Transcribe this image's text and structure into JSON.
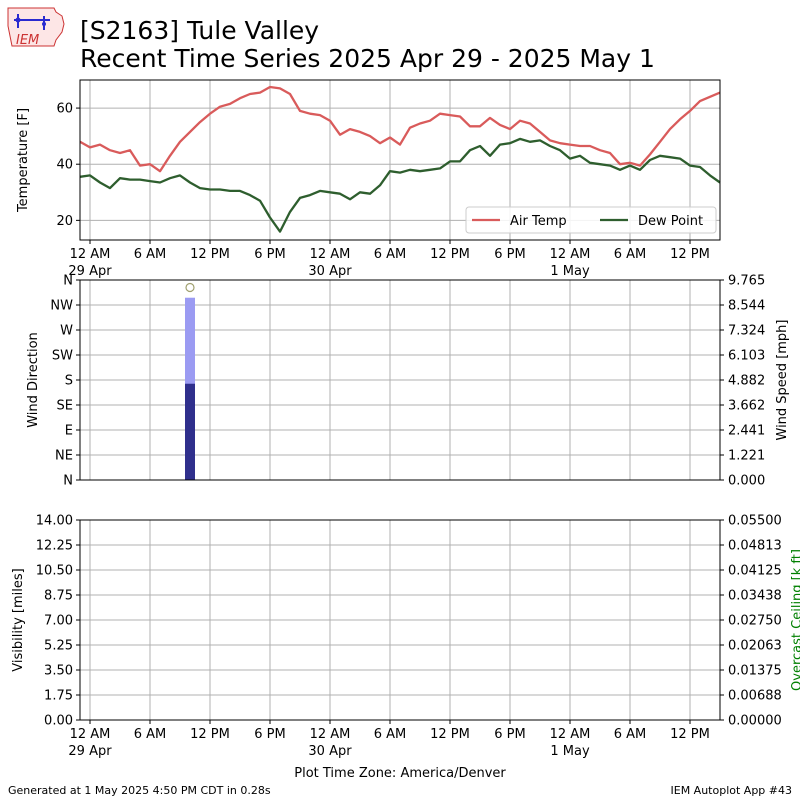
{
  "header": {
    "title_line1": "[S2163] Tule Valley",
    "title_line2": "Recent Time Series 2025 Apr 29 - 2025 May 1",
    "logo_text": "IEM"
  },
  "footer": {
    "generated": "Generated at 1 May 2025 4:50 PM CDT in 0.28s",
    "app": "IEM Autoplot App #43"
  },
  "colors": {
    "air_temp": "#d95b5b",
    "dew_point": "#2e5e2e",
    "wind_gust_bar": "#9b9bf2",
    "wind_speed_bar": "#2f2f8c",
    "ceiling_axis": "#008000",
    "grid": "#b0b0b0"
  },
  "chart_data": [
    {
      "type": "line",
      "panel": "temperature",
      "ylabel": "Temperature [F]",
      "ylim": [
        13,
        70
      ],
      "yticks": [
        20,
        40,
        60
      ],
      "grid": true,
      "legend_placement": "lower-right",
      "x_ticks": [
        {
          "hour": 0,
          "label": "12 AM",
          "sub": "29 Apr"
        },
        {
          "hour": 6,
          "label": "6 AM",
          "sub": ""
        },
        {
          "hour": 12,
          "label": "12 PM",
          "sub": ""
        },
        {
          "hour": 18,
          "label": "6 PM",
          "sub": ""
        },
        {
          "hour": 24,
          "label": "12 AM",
          "sub": "30 Apr"
        },
        {
          "hour": 30,
          "label": "6 AM",
          "sub": ""
        },
        {
          "hour": 36,
          "label": "12 PM",
          "sub": ""
        },
        {
          "hour": 42,
          "label": "6 PM",
          "sub": ""
        },
        {
          "hour": 48,
          "label": "12 AM",
          "sub": "1 May"
        },
        {
          "hour": 54,
          "label": "6 AM",
          "sub": ""
        },
        {
          "hour": 60,
          "label": "12 PM",
          "sub": ""
        }
      ],
      "x_range_hours": [
        -1,
        63
      ],
      "series": [
        {
          "name": "Air Temp",
          "color_key": "air_temp",
          "points": [
            [
              -1,
              48
            ],
            [
              0,
              46
            ],
            [
              1,
              47
            ],
            [
              2,
              45
            ],
            [
              3,
              44
            ],
            [
              4,
              45
            ],
            [
              5,
              39.5
            ],
            [
              6,
              40
            ],
            [
              7,
              37.5
            ],
            [
              8,
              43
            ],
            [
              9,
              48
            ],
            [
              10,
              51.5
            ],
            [
              11,
              55
            ],
            [
              12,
              58
            ],
            [
              13,
              60.5
            ],
            [
              14,
              61.5
            ],
            [
              15,
              63.5
            ],
            [
              16,
              65
            ],
            [
              17,
              65.5
            ],
            [
              18,
              67.5
            ],
            [
              19,
              67
            ],
            [
              20,
              65
            ],
            [
              21,
              59
            ],
            [
              22,
              58
            ],
            [
              23,
              57.5
            ],
            [
              24,
              55.5
            ],
            [
              25,
              50.5
            ],
            [
              26,
              52.5
            ],
            [
              27,
              51.5
            ],
            [
              28,
              50
            ],
            [
              29,
              47.5
            ],
            [
              30,
              49.5
            ],
            [
              31,
              47
            ],
            [
              32,
              53
            ],
            [
              33,
              54.5
            ],
            [
              34,
              55.5
            ],
            [
              35,
              58
            ],
            [
              36,
              57.5
            ],
            [
              37,
              57
            ],
            [
              38,
              53.5
            ],
            [
              39,
              53.5
            ],
            [
              40,
              56.5
            ],
            [
              41,
              54
            ],
            [
              42,
              52.5
            ],
            [
              43,
              55.5
            ],
            [
              44,
              54.5
            ],
            [
              45,
              51.5
            ],
            [
              46,
              48.5
            ],
            [
              47,
              47.5
            ],
            [
              48,
              47
            ],
            [
              49,
              46.5
            ],
            [
              50,
              46.5
            ],
            [
              51,
              45
            ],
            [
              52,
              44
            ],
            [
              53,
              40
            ],
            [
              54,
              40.5
            ],
            [
              55,
              39.5
            ],
            [
              56,
              43.5
            ],
            [
              57,
              48
            ],
            [
              58,
              52.5
            ],
            [
              59,
              56
            ],
            [
              60,
              59
            ],
            [
              61,
              62.5
            ],
            [
              62,
              64
            ],
            [
              63,
              65.5
            ]
          ]
        },
        {
          "name": "Dew Point",
          "color_key": "dew_point",
          "points": [
            [
              -1,
              35.5
            ],
            [
              0,
              36
            ],
            [
              1,
              33.5
            ],
            [
              2,
              31.5
            ],
            [
              3,
              35
            ],
            [
              4,
              34.5
            ],
            [
              5,
              34.5
            ],
            [
              6,
              34
            ],
            [
              7,
              33.5
            ],
            [
              8,
              35
            ],
            [
              9,
              36
            ],
            [
              10,
              33.5
            ],
            [
              11,
              31.5
            ],
            [
              12,
              31
            ],
            [
              13,
              31
            ],
            [
              14,
              30.5
            ],
            [
              15,
              30.5
            ],
            [
              16,
              29
            ],
            [
              17,
              27
            ],
            [
              18,
              21
            ],
            [
              19,
              16
            ],
            [
              20,
              23
            ],
            [
              21,
              28
            ],
            [
              22,
              29
            ],
            [
              23,
              30.5
            ],
            [
              24,
              30
            ],
            [
              25,
              29.5
            ],
            [
              26,
              27.5
            ],
            [
              27,
              30
            ],
            [
              28,
              29.5
            ],
            [
              29,
              32.5
            ],
            [
              30,
              37.5
            ],
            [
              31,
              37
            ],
            [
              32,
              38
            ],
            [
              33,
              37.5
            ],
            [
              34,
              38
            ],
            [
              35,
              38.5
            ],
            [
              36,
              41
            ],
            [
              37,
              41
            ],
            [
              38,
              45
            ],
            [
              39,
              46.5
            ],
            [
              40,
              43
            ],
            [
              41,
              47
            ],
            [
              42,
              47.5
            ],
            [
              43,
              49
            ],
            [
              44,
              48
            ],
            [
              45,
              48.5
            ],
            [
              46,
              46.5
            ],
            [
              47,
              45
            ],
            [
              48,
              42
            ],
            [
              49,
              43
            ],
            [
              50,
              40.5
            ],
            [
              51,
              40
            ],
            [
              52,
              39.5
            ],
            [
              53,
              38
            ],
            [
              54,
              39.5
            ],
            [
              55,
              38
            ],
            [
              56,
              41.5
            ],
            [
              57,
              43
            ],
            [
              58,
              42.5
            ],
            [
              59,
              42
            ],
            [
              60,
              39.5
            ],
            [
              61,
              39
            ],
            [
              62,
              36
            ],
            [
              63,
              33.5
            ]
          ]
        }
      ]
    },
    {
      "type": "bar",
      "panel": "wind",
      "ylabel": "Wind Direction",
      "y2label": "Wind Speed [mph]",
      "direction_ticks": [
        "N",
        "NE",
        "E",
        "SE",
        "S",
        "SW",
        "W",
        "NW",
        "N"
      ],
      "ylim_deg": [
        0,
        360
      ],
      "speed_ticks": [
        "0.000",
        "1.221",
        "2.441",
        "3.662",
        "4.882",
        "6.103",
        "7.324",
        "8.544",
        "9.765"
      ],
      "ylim_speed": [
        0,
        9.765
      ],
      "grid": true,
      "bars": [
        {
          "hour": 10,
          "gust_mph": 8.9,
          "speed_mph": 4.7
        }
      ],
      "markers": [
        {
          "hour": 10,
          "speed_mph": 9.4
        }
      ]
    },
    {
      "type": "line",
      "panel": "visibility",
      "ylabel": "Visibility [miles]",
      "y2label": "Overcast Ceiling [k ft]",
      "yticks": [
        "0.00",
        "1.75",
        "3.50",
        "5.25",
        "7.00",
        "8.75",
        "10.50",
        "12.25",
        "14.00"
      ],
      "ylim": [
        0,
        14
      ],
      "y2ticks": [
        "0.00000",
        "0.00688",
        "0.01375",
        "0.02063",
        "0.02750",
        "0.03438",
        "0.04125",
        "0.04813",
        "0.05500"
      ],
      "y2lim": [
        0,
        0.055
      ],
      "grid": true,
      "xlabel": "Plot Time Zone: America/Denver"
    }
  ]
}
